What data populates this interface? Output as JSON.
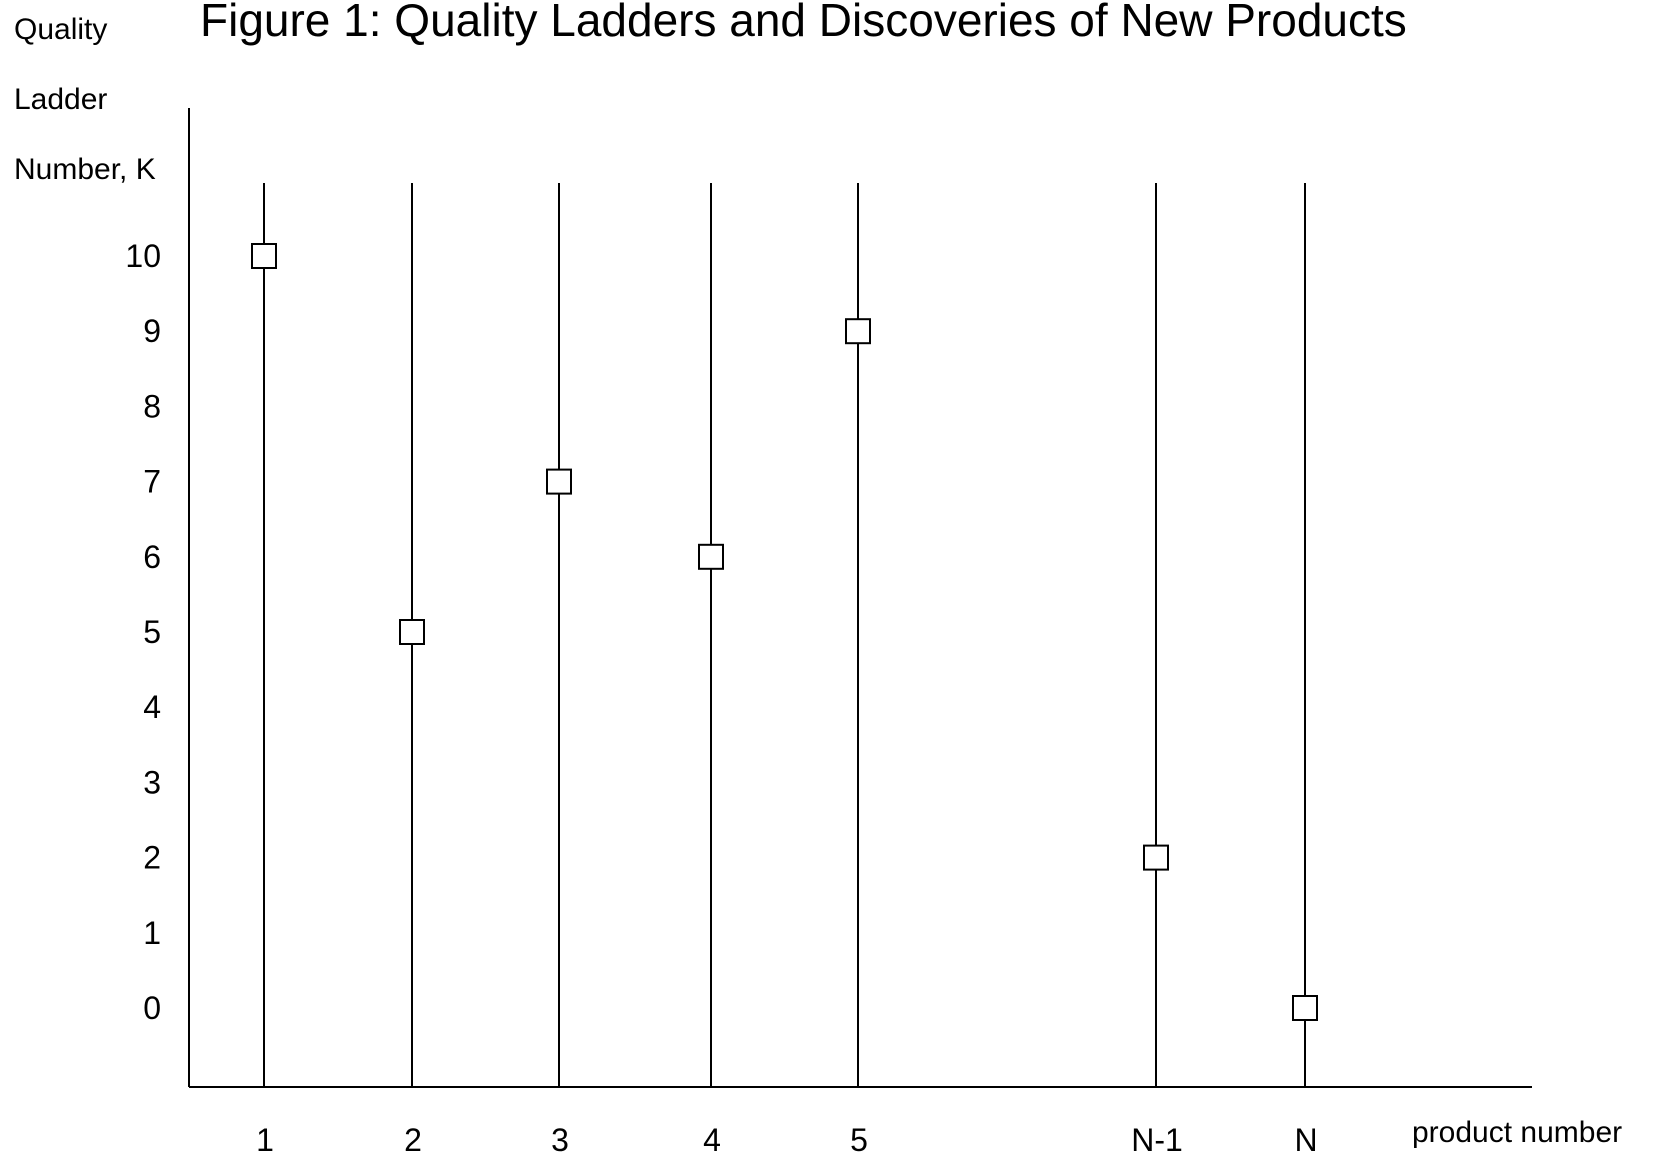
{
  "chart_data": {
    "type": "scatter",
    "title": "Figure 1: Quality Ladders and Discoveries of New Products",
    "ylabel_lines": [
      "Quality",
      "Ladder",
      "Number, K"
    ],
    "xlabel": "product number",
    "y_ticks": [
      "10",
      "9",
      "8",
      "7",
      "6",
      "5",
      "4",
      "3",
      "2",
      "1",
      "0"
    ],
    "ylim": [
      -1,
      11
    ],
    "marker": "open-square",
    "points": [
      {
        "x": "1",
        "y": 10
      },
      {
        "x": "2",
        "y": 5
      },
      {
        "x": "3",
        "y": 7
      },
      {
        "x": "4",
        "y": 6
      },
      {
        "x": "5",
        "y": 9
      },
      {
        "x": "N-1",
        "y": 2
      },
      {
        "x": "N",
        "y": 0
      }
    ],
    "grid": "vertical ladder lines at each product",
    "legend": "none"
  }
}
